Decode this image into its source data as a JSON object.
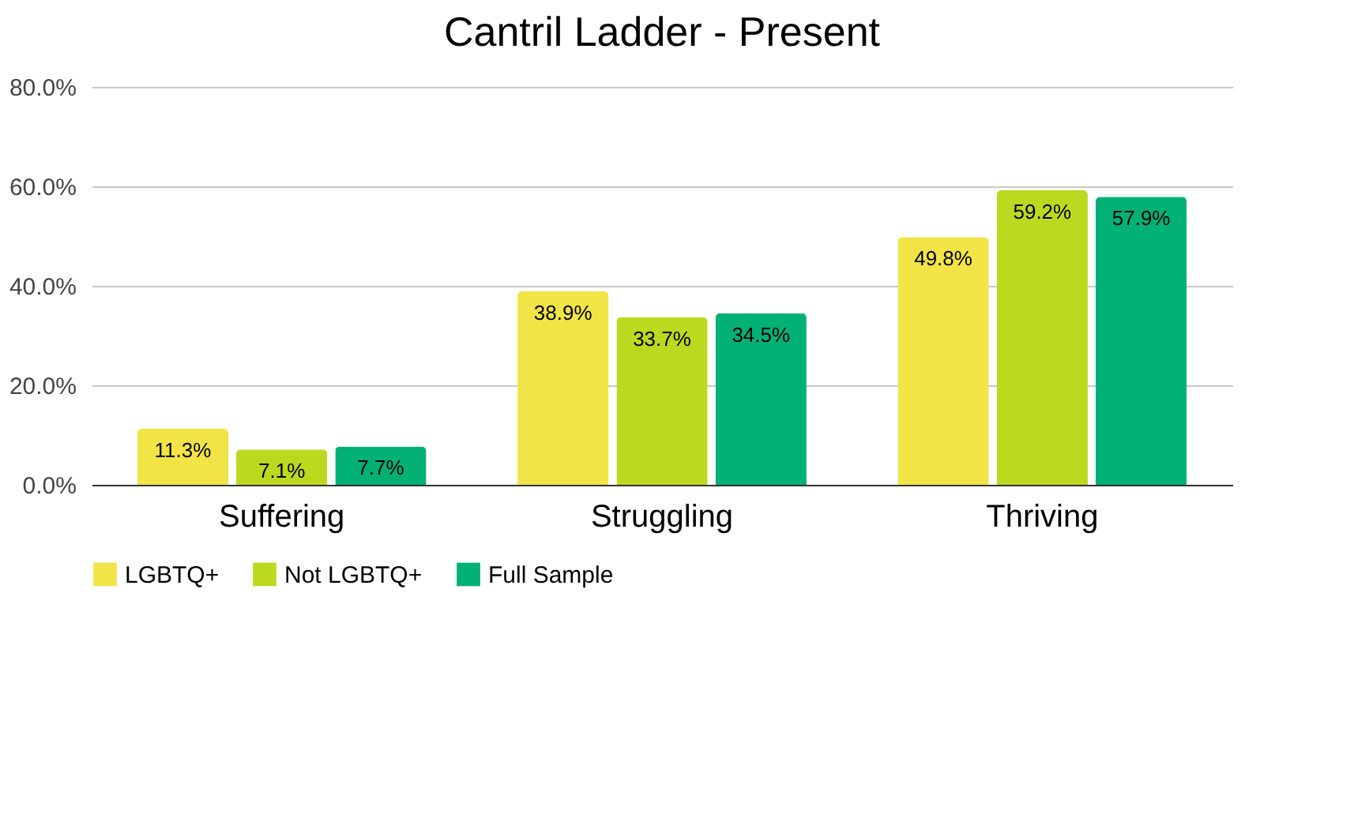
{
  "chart_data": {
    "type": "bar",
    "title": "Cantril Ladder - Present",
    "categories": [
      "Suffering",
      "Struggling",
      "Thriving"
    ],
    "series": [
      {
        "name": "LGBTQ+",
        "color": "#f2e447",
        "values": [
          11.3,
          38.9,
          49.8
        ],
        "value_labels": [
          "11.3%",
          "38.9%",
          "49.8%"
        ]
      },
      {
        "name": "Not LGBTQ+",
        "color": "#bcd91f",
        "values": [
          7.1,
          33.7,
          59.2
        ],
        "value_labels": [
          "7.1%",
          "33.7%",
          "59.2%"
        ]
      },
      {
        "name": "Full Sample",
        "color": "#00b074",
        "values": [
          7.7,
          34.5,
          57.9
        ],
        "value_labels": [
          "7.7%",
          "34.5%",
          "57.9%"
        ]
      }
    ],
    "ylim": [
      0,
      80
    ],
    "yticks": [
      {
        "value": 0,
        "label": "0.0%"
      },
      {
        "value": 20,
        "label": "20.0%"
      },
      {
        "value": 40,
        "label": "40.0%"
      },
      {
        "value": 60,
        "label": "60.0%"
      },
      {
        "value": 80,
        "label": "80.0%"
      }
    ],
    "grid": "y",
    "legend": "bottom"
  }
}
